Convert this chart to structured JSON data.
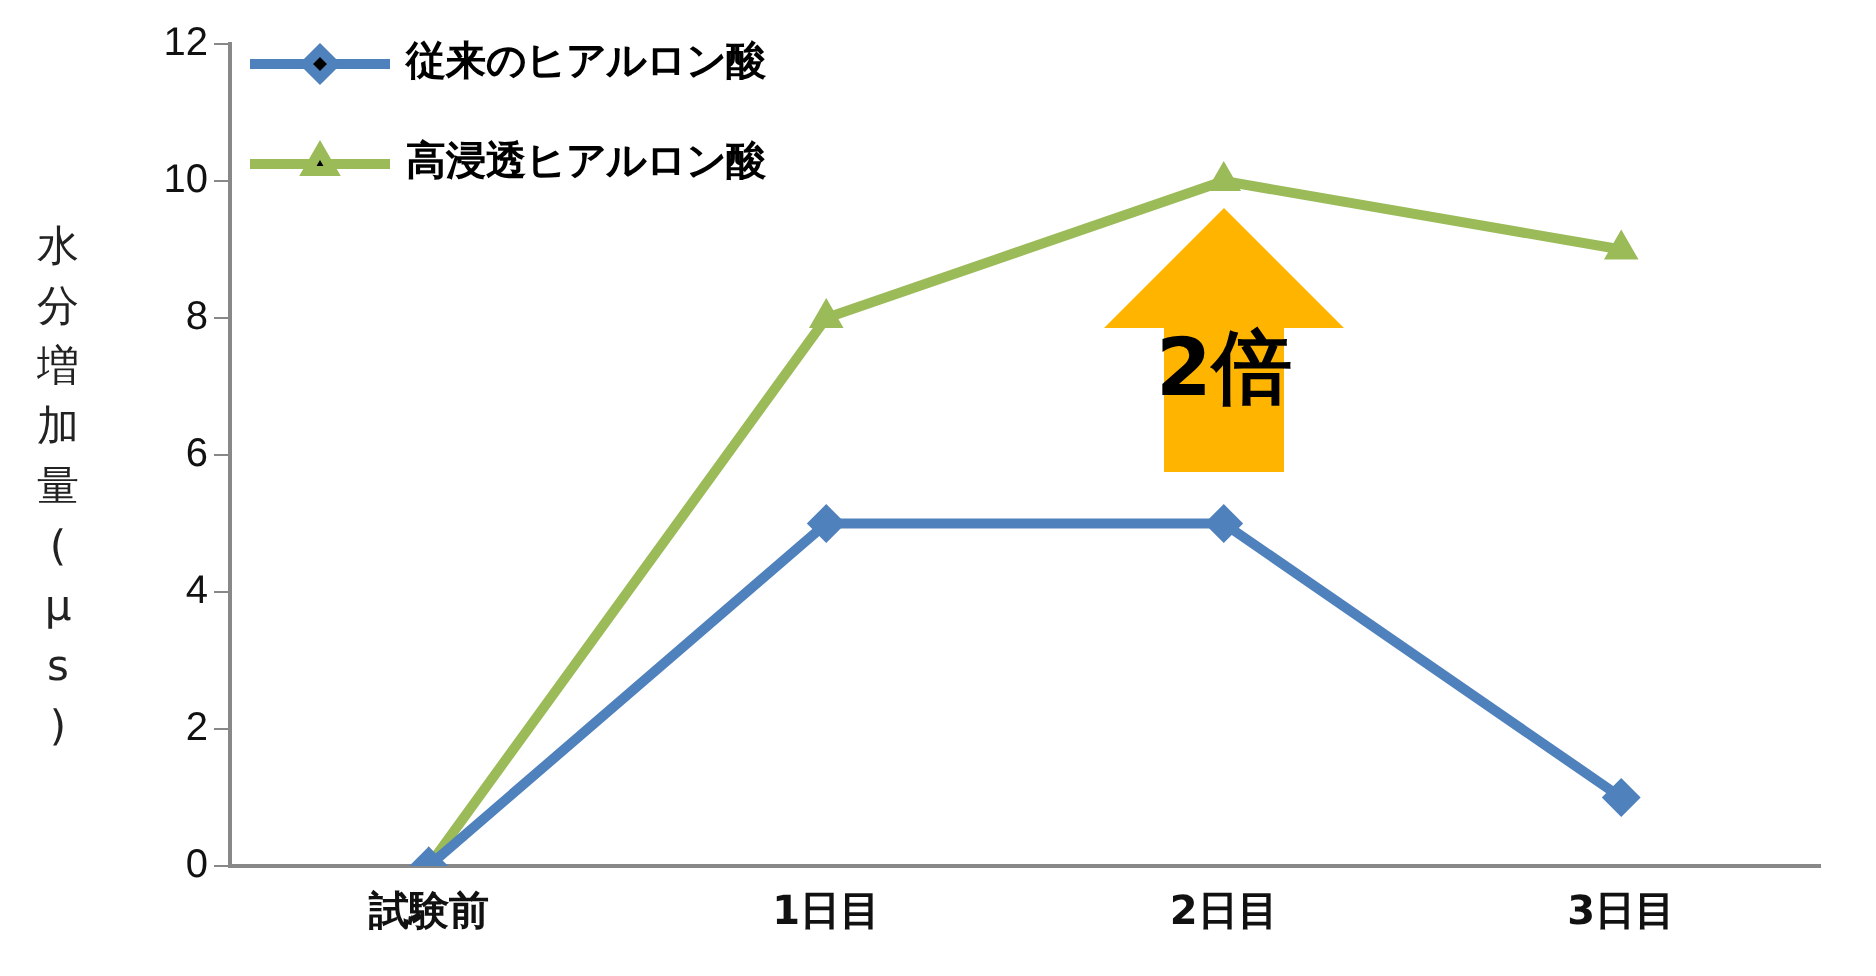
{
  "chart_data": {
    "type": "line",
    "ylabel": "水分増加量(μs)",
    "categories": [
      "試験前",
      "1日目",
      "2日目",
      "3日目"
    ],
    "series": [
      {
        "name": "従来のヒアルロン酸",
        "color": "#4f81bd",
        "marker": "diamond",
        "values": [
          0,
          5,
          5,
          1
        ]
      },
      {
        "name": "高浸透ヒアルロン酸",
        "color": "#9bbb59",
        "marker": "triangle",
        "values": [
          0,
          8,
          10,
          9
        ]
      }
    ],
    "ylim": [
      0,
      12
    ],
    "yticks": [
      0,
      2,
      4,
      6,
      8,
      10,
      12
    ],
    "grid": false,
    "legend": "top left",
    "annotations": [
      "2倍"
    ]
  }
}
